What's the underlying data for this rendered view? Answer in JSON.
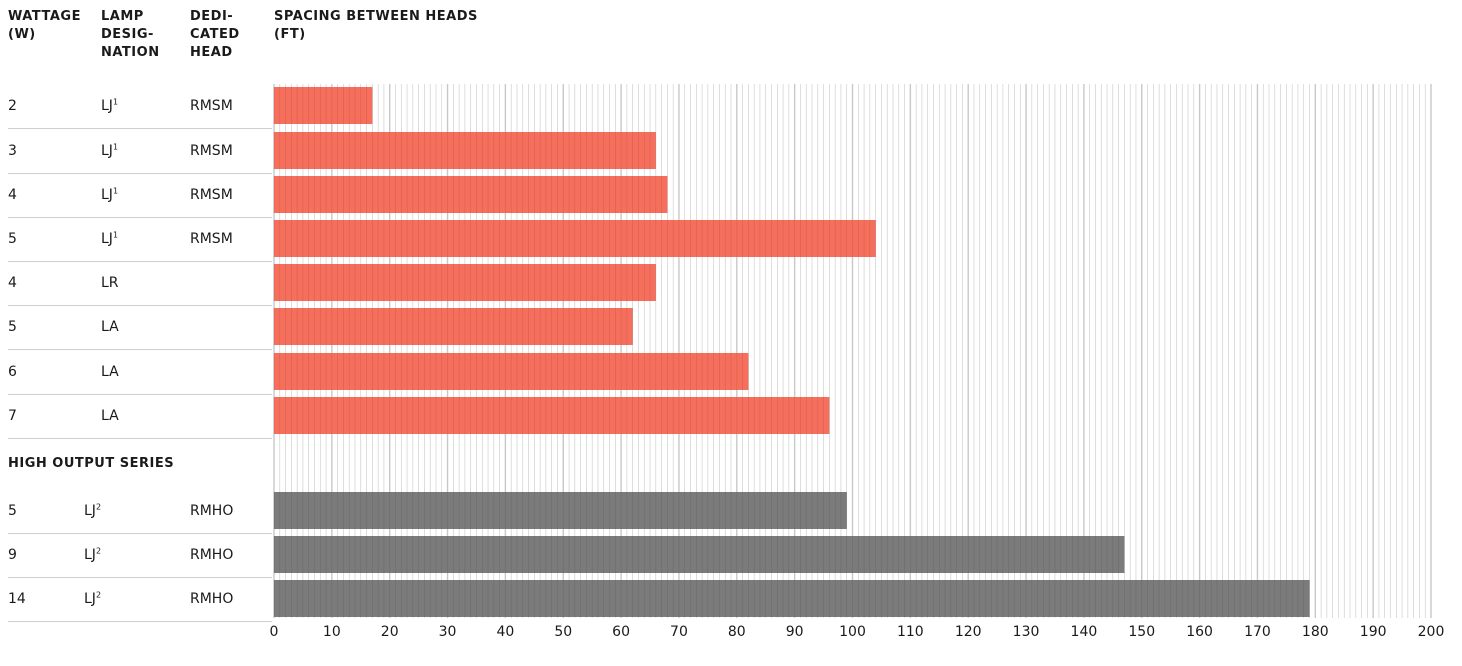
{
  "headers": {
    "wattage": [
      "WATTAGE",
      "(W)"
    ],
    "lamp": [
      "LAMP",
      "DESIG-",
      "NATION"
    ],
    "head": [
      "DEDI-",
      "CATED",
      "HEAD"
    ],
    "spacing": [
      "SPACING BETWEEN HEADS",
      "(FT)"
    ]
  },
  "section_label": "HIGH OUTPUT SERIES",
  "rows": [
    {
      "wattage": "2",
      "lamp": "LJ",
      "sup": "1",
      "head": "RMSM"
    },
    {
      "wattage": "3",
      "lamp": "LJ",
      "sup": "1",
      "head": "RMSM"
    },
    {
      "wattage": "4",
      "lamp": "LJ",
      "sup": "1",
      "head": "RMSM"
    },
    {
      "wattage": "5",
      "lamp": "LJ",
      "sup": "1",
      "head": "RMSM"
    },
    {
      "wattage": "4",
      "lamp": "LR",
      "sup": "",
      "head": ""
    },
    {
      "wattage": "5",
      "lamp": "LA",
      "sup": "",
      "head": ""
    },
    {
      "wattage": "6",
      "lamp": "LA",
      "sup": "",
      "head": ""
    },
    {
      "wattage": "7",
      "lamp": "LA",
      "sup": "",
      "head": ""
    },
    {
      "wattage": "5",
      "lamp": "LJ",
      "sup": "2",
      "head": "RMHO"
    },
    {
      "wattage": "9",
      "lamp": "LJ",
      "sup": "2",
      "head": "RMHO"
    },
    {
      "wattage": "14",
      "lamp": "LJ",
      "sup": "2",
      "head": "RMHO"
    }
  ],
  "colors": {
    "standard": "#f56f5c",
    "high_output": "#7c7b7b",
    "grid": "#c8c8c8",
    "row_separator": "#cfcfcf"
  },
  "chart_data": {
    "type": "bar",
    "orientation": "horizontal",
    "xlim": [
      0,
      200
    ],
    "xticks": [
      0,
      10,
      20,
      30,
      40,
      50,
      60,
      70,
      80,
      90,
      100,
      110,
      120,
      130,
      140,
      150,
      160,
      170,
      180,
      190,
      200
    ],
    "minor_tick_step": 1,
    "values": [
      17,
      66,
      68,
      104,
      66,
      62,
      82,
      96,
      99,
      147,
      179
    ],
    "series_group": [
      "standard",
      "standard",
      "standard",
      "standard",
      "standard",
      "standard",
      "standard",
      "standard",
      "high_output",
      "high_output",
      "high_output"
    ],
    "grid": true
  }
}
